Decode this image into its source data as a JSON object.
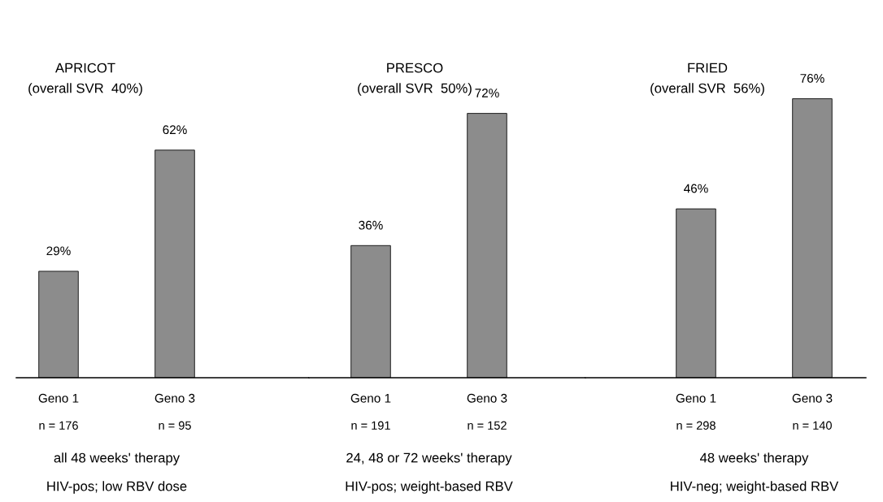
{
  "chart_data": [
    {
      "type": "bar",
      "title": "APRICOT",
      "subtitle": "(overall SVR  40%)",
      "categories": [
        "Geno 1",
        "Geno 3"
      ],
      "values": [
        29,
        62
      ],
      "value_labels": [
        "29%",
        "62%"
      ],
      "color": "#8c8c8c",
      "tick_labels": "x",
      "grid": false,
      "legend": false,
      "annotations": [
        "n = 176",
        "n = 95",
        "all 48 weeks' therapy",
        "HIV-pos; low RBV dose"
      ]
    },
    {
      "type": "bar",
      "title": "PRESCO",
      "subtitle": "(overall SVR  50%)",
      "categories": [
        "Geno 1",
        "Geno 3"
      ],
      "values": [
        36,
        72
      ],
      "value_labels": [
        "36%",
        "72%"
      ],
      "color": "#8c8c8c",
      "tick_labels": "x",
      "grid": false,
      "legend": false,
      "annotations": [
        "n = 191",
        "n = 152",
        "24, 48 or 72 weeks' therapy",
        "HIV-pos; weight-based RBV"
      ]
    },
    {
      "type": "bar",
      "title": "FRIED",
      "subtitle": "(overall SVR  56%)",
      "categories": [
        "Geno 1",
        "Geno 3"
      ],
      "values": [
        46,
        76
      ],
      "value_labels": [
        "46%",
        "76%"
      ],
      "color": "#8c8c8c",
      "tick_labels": "x",
      "grid": false,
      "legend": false,
      "annotations": [
        "n = 298",
        "n = 140",
        "48 weeks' therapy",
        "HIV-neg; weight-based RBV"
      ]
    }
  ]
}
